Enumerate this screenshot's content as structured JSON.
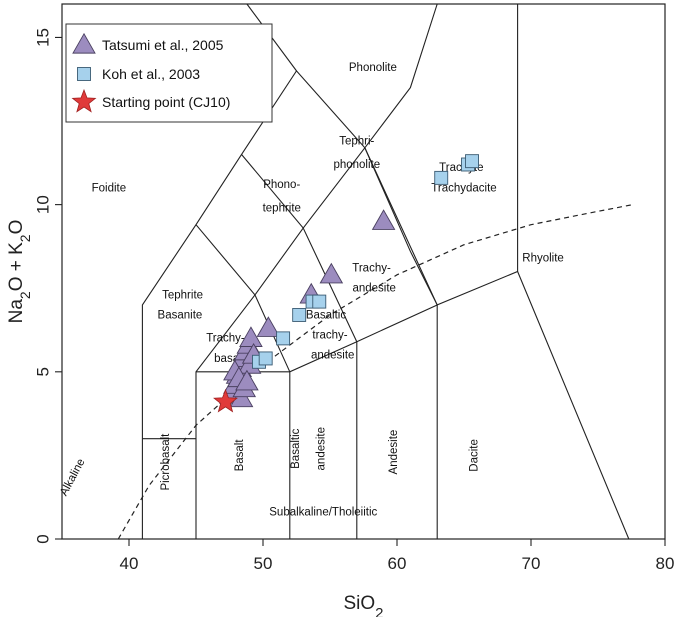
{
  "chart_data": {
    "type": "scatter",
    "xlabel": "SiO2",
    "ylabel": "Na2O + K2O",
    "xlim": [
      35,
      80
    ],
    "ylim": [
      0,
      16
    ],
    "xticks": [
      "40",
      "50",
      "60",
      "70",
      "80"
    ],
    "yticks": [
      "0",
      "5",
      "10",
      "15"
    ],
    "legend_position": "top-left",
    "series": [
      {
        "name": "Tatsumi et al., 2005",
        "marker": "triangle",
        "color": "#9c8cbf",
        "x": [
          47.6,
          47.9,
          48.1,
          48.3,
          48.5,
          48.7,
          48.9,
          49.1,
          48.4,
          48.6,
          49.0,
          49.3,
          47.9,
          48.2,
          48.8,
          50.4,
          53.6,
          55.1,
          59.0
        ],
        "y": [
          4.3,
          4.6,
          4.9,
          5.1,
          5.4,
          5.6,
          5.8,
          6.0,
          4.2,
          4.5,
          5.2,
          5.5,
          5.0,
          4.8,
          4.7,
          6.3,
          7.3,
          7.9,
          9.5
        ]
      },
      {
        "name": "Koh et al., 2003",
        "marker": "square",
        "color": "#a6d1ec",
        "x": [
          49.7,
          50.2,
          51.5,
          52.7,
          53.7,
          54.2,
          63.3,
          65.3,
          65.6
        ],
        "y": [
          5.3,
          5.4,
          6.0,
          6.7,
          7.1,
          7.1,
          10.8,
          11.2,
          11.3
        ]
      },
      {
        "name": "Starting point (CJ10)",
        "marker": "star",
        "color": "#e03a3a",
        "x": [
          47.2
        ],
        "y": [
          4.1
        ]
      }
    ],
    "fields": [
      {
        "label": "Foidite",
        "x": 38.5,
        "y": 10.4
      },
      {
        "label": "Phonolite",
        "x": 58.2,
        "y": 14.0
      },
      {
        "label": "Tephri-",
        "x": 57.0,
        "y": 11.8
      },
      {
        "label": "phonolite",
        "x": 57.0,
        "y": 11.1
      },
      {
        "label": "Phono-",
        "x": 51.4,
        "y": 10.5
      },
      {
        "label": "tephrite",
        "x": 51.4,
        "y": 9.8
      },
      {
        "label": "Trachyte",
        "x": 64.8,
        "y": 11.0
      },
      {
        "label": "Trachydacite",
        "x": 65.0,
        "y": 10.4
      },
      {
        "label": "Tephrite",
        "x": 44.0,
        "y": 7.2
      },
      {
        "label": "Basanite",
        "x": 43.8,
        "y": 6.6
      },
      {
        "label": "Trachy-",
        "x": 58.1,
        "y": 8.0
      },
      {
        "label": "andesite",
        "x": 58.3,
        "y": 7.4
      },
      {
        "label": "Basaltic",
        "x": 54.7,
        "y": 6.6
      },
      {
        "label": "trachy-",
        "x": 55.0,
        "y": 6.0
      },
      {
        "label": "andesite",
        "x": 55.2,
        "y": 5.4
      },
      {
        "label": "Trachy-",
        "x": 47.2,
        "y": 5.9
      },
      {
        "label": "basalt",
        "x": 47.5,
        "y": 5.3
      },
      {
        "label": "Rhyolite",
        "x": 70.9,
        "y": 8.3
      },
      {
        "label": "Subalkaline/Tholeiitic",
        "x": 54.5,
        "y": 0.7
      }
    ],
    "vertical_labels": [
      {
        "label": "Alkaline",
        "x": 36.0,
        "y": 1.8,
        "angle": -62
      },
      {
        "label": "Picrobasalt",
        "x": 43.0,
        "y": 2.3,
        "angle": -90
      },
      {
        "label": "Basalt",
        "x": 48.5,
        "y": 2.5,
        "angle": -90
      },
      {
        "label": "Basaltic",
        "x": 52.7,
        "y": 2.7,
        "angle": -90
      },
      {
        "label": "andesite",
        "x": 54.6,
        "y": 2.7,
        "angle": -90
      },
      {
        "label": "Andesite",
        "x": 60.0,
        "y": 2.6,
        "angle": -90
      },
      {
        "label": "Dacite",
        "x": 66.0,
        "y": 2.5,
        "angle": -90
      }
    ],
    "boundaries": [
      [
        [
          41,
          0
        ],
        [
          41,
          7
        ],
        [
          45,
          9.4
        ],
        [
          48.4,
          11.5
        ],
        [
          52.5,
          14
        ],
        [
          57.6,
          11.7
        ],
        [
          63,
          7
        ],
        [
          69,
          8
        ],
        [
          77.3,
          0
        ]
      ],
      [
        [
          45,
          0
        ],
        [
          45,
          5
        ],
        [
          49.4,
          7.3
        ],
        [
          53,
          9.3
        ],
        [
          57.6,
          11.7
        ],
        [
          61,
          13.5
        ],
        [
          63,
          16
        ]
      ],
      [
        [
          41,
          3
        ],
        [
          45,
          3
        ]
      ],
      [
        [
          45,
          5
        ],
        [
          52,
          5
        ],
        [
          57,
          5.9
        ],
        [
          63,
          7
        ],
        [
          63,
          0
        ]
      ],
      [
        [
          52,
          0
        ],
        [
          52,
          5
        ],
        [
          49.4,
          7.3
        ],
        [
          45,
          9.4
        ]
      ],
      [
        [
          57,
          0
        ],
        [
          57,
          5.9
        ],
        [
          53,
          9.3
        ],
        [
          48.4,
          11.5
        ]
      ],
      [
        [
          52.5,
          14
        ],
        [
          48.8,
          16
        ]
      ],
      [
        [
          69,
          8
        ],
        [
          69,
          16
        ]
      ],
      [
        [
          35,
          16
        ],
        [
          39,
          16
        ]
      ],
      [
        [
          57.6,
          11.7
        ],
        [
          61,
          8.6
        ],
        [
          63,
          7
        ]
      ]
    ],
    "dashed_line": [
      [
        39.2,
        0
      ],
      [
        41.5,
        1.6
      ],
      [
        45,
        3.4
      ],
      [
        50,
        5.2
      ],
      [
        55,
        6.7
      ],
      [
        60,
        7.9
      ],
      [
        65,
        8.8
      ],
      [
        70,
        9.4
      ],
      [
        75,
        9.8
      ],
      [
        77.6,
        10.0
      ]
    ]
  }
}
